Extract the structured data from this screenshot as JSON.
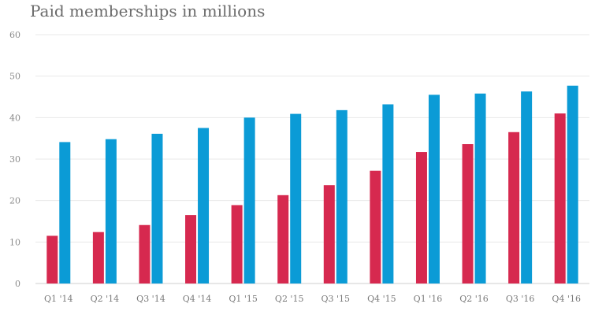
{
  "chart_data": {
    "type": "bar",
    "title": "Paid memberships in millions",
    "xlabel": "",
    "ylabel": "",
    "ylim": [
      0,
      60
    ],
    "yticks": [
      0,
      10,
      20,
      30,
      40,
      50,
      60
    ],
    "grid": true,
    "legend": "none",
    "categories": [
      "Q1 '14",
      "Q2 '14",
      "Q3 '14",
      "Q4 '14",
      "Q1 '15",
      "Q2 '15",
      "Q3 '15",
      "Q4 '15",
      "Q1 '16",
      "Q2 '16",
      "Q3 '16",
      "Q4 '16"
    ],
    "series": [
      {
        "color": "#d6294f",
        "values": [
          11.5,
          12.4,
          14.1,
          16.5,
          18.9,
          21.3,
          23.7,
          27.2,
          31.7,
          33.6,
          36.5,
          41.0
        ]
      },
      {
        "color": "#0b9bd6",
        "values": [
          34.1,
          34.8,
          36.1,
          37.5,
          40.0,
          40.9,
          41.8,
          43.2,
          45.5,
          45.8,
          46.3,
          47.7
        ]
      }
    ]
  }
}
